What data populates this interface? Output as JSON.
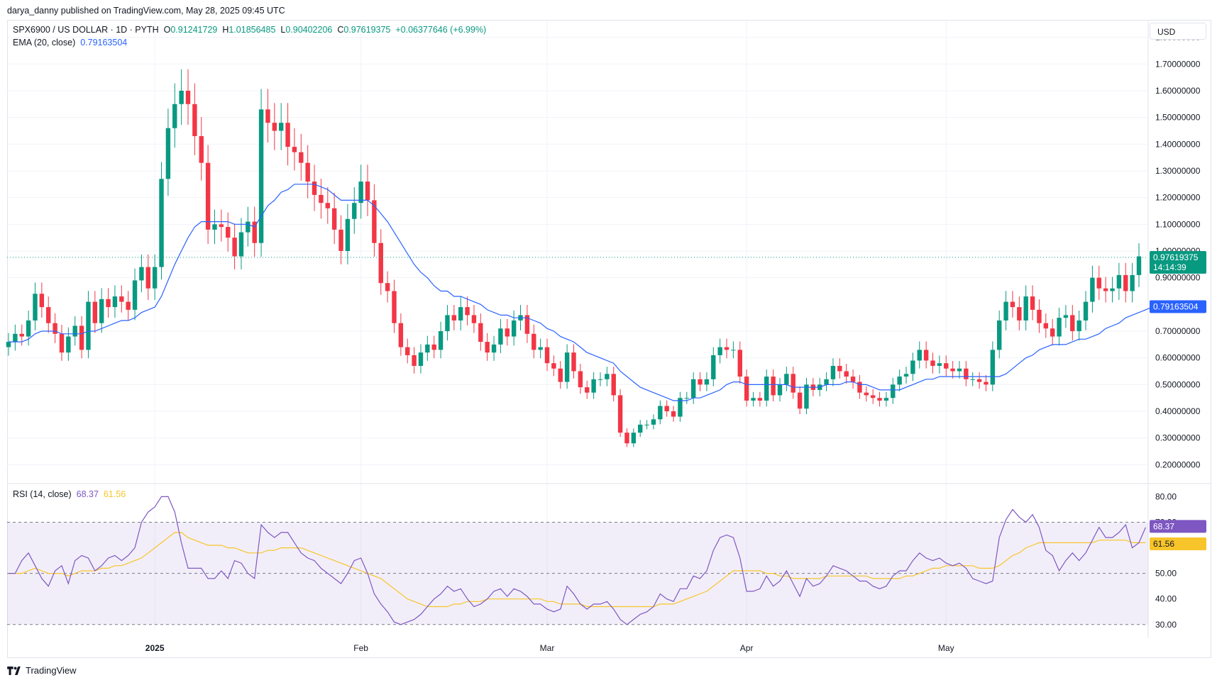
{
  "publisher_line": "darya_danny published on TradingView.com, May 28, 2025 09:45 UTC",
  "symbol": {
    "name": "SPX6900 / US DOLLAR · 1D · PYTH",
    "o_label": "O",
    "o": "0.91241729",
    "h_label": "H",
    "h": "1.01856485",
    "l_label": "L",
    "l": "0.90402206",
    "c_label": "C",
    "c": "0.97619375",
    "change": "+0.06377646 (+6.99%)"
  },
  "ema": {
    "label": "EMA (20, close)",
    "value": "0.79163504"
  },
  "rsi": {
    "label": "RSI (14, close)",
    "value": "68.37",
    "ma": "61.56"
  },
  "currency_button": "USD",
  "price_tag": {
    "value": "0.97619375",
    "countdown": "14:14:39"
  },
  "ema_tag": "0.79163504",
  "rsi_tag": "68.37",
  "rsi_ma_tag": "61.56",
  "brand": "TradingView",
  "colors": {
    "up": "#089981",
    "down": "#f23645",
    "ema": "#2962ff",
    "rsi": "#7e57c2",
    "rsi_ma": "#f7c52a"
  },
  "chart_data": [
    {
      "type": "candlestick",
      "title": "SPX6900 / US DOLLAR · 1D · PYTH",
      "x_labels": [
        "2025",
        "Feb",
        "Mar",
        "Apr",
        "May"
      ],
      "y_ticks": [
        "1.80000000",
        "1.70000000",
        "1.60000000",
        "1.50000000",
        "1.40000000",
        "1.30000000",
        "1.20000000",
        "1.10000000",
        "1.00000000",
        "0.90000000",
        "0.70000000",
        "0.60000000",
        "0.50000000",
        "0.40000000",
        "0.30000000",
        "0.20000000"
      ],
      "ylim": [
        0.14,
        1.86
      ],
      "grid": true,
      "close": [
        0.66,
        0.69,
        0.68,
        0.74,
        0.84,
        0.79,
        0.73,
        0.69,
        0.62,
        0.68,
        0.72,
        0.63,
        0.81,
        0.73,
        0.82,
        0.79,
        0.83,
        0.81,
        0.78,
        0.89,
        0.94,
        0.86,
        0.94,
        1.27,
        1.46,
        1.55,
        1.6,
        1.55,
        1.43,
        1.33,
        1.08,
        1.1,
        1.09,
        1.05,
        0.98,
        1.07,
        1.11,
        1.03,
        1.53,
        1.48,
        1.45,
        1.48,
        1.39,
        1.37,
        1.33,
        1.26,
        1.21,
        1.18,
        1.16,
        1.08,
        1.0,
        1.12,
        1.18,
        1.26,
        1.19,
        1.03,
        0.88,
        0.85,
        0.73,
        0.64,
        0.61,
        0.57,
        0.62,
        0.65,
        0.63,
        0.7,
        0.76,
        0.74,
        0.79,
        0.76,
        0.73,
        0.66,
        0.62,
        0.65,
        0.71,
        0.68,
        0.74,
        0.76,
        0.69,
        0.63,
        0.64,
        0.58,
        0.56,
        0.51,
        0.62,
        0.55,
        0.49,
        0.47,
        0.52,
        0.52,
        0.54,
        0.46,
        0.32,
        0.28,
        0.32,
        0.35,
        0.35,
        0.37,
        0.42,
        0.4,
        0.38,
        0.45,
        0.45,
        0.52,
        0.5,
        0.52,
        0.61,
        0.64,
        0.63,
        0.63,
        0.53,
        0.44,
        0.45,
        0.44,
        0.53,
        0.46,
        0.5,
        0.54,
        0.47,
        0.41,
        0.5,
        0.48,
        0.5,
        0.52,
        0.57,
        0.55,
        0.53,
        0.51,
        0.47,
        0.46,
        0.45,
        0.44,
        0.45,
        0.5,
        0.53,
        0.54,
        0.59,
        0.63,
        0.59,
        0.57,
        0.58,
        0.56,
        0.55,
        0.56,
        0.52,
        0.52,
        0.51,
        0.5,
        0.63,
        0.74,
        0.81,
        0.79,
        0.74,
        0.83,
        0.78,
        0.73,
        0.71,
        0.68,
        0.75,
        0.76,
        0.7,
        0.74,
        0.81,
        0.9,
        0.86,
        0.85,
        0.86,
        0.91,
        0.85,
        0.91,
        0.98
      ],
      "ema": {
        "name": "EMA (20, close)",
        "values": [
          0.66,
          0.66,
          0.66,
          0.67,
          0.69,
          0.7,
          0.7,
          0.7,
          0.69,
          0.69,
          0.69,
          0.69,
          0.7,
          0.7,
          0.71,
          0.72,
          0.73,
          0.74,
          0.74,
          0.75,
          0.77,
          0.78,
          0.79,
          0.83,
          0.89,
          0.95,
          1.0,
          1.05,
          1.09,
          1.11,
          1.11,
          1.11,
          1.11,
          1.11,
          1.1,
          1.1,
          1.1,
          1.09,
          1.13,
          1.17,
          1.19,
          1.22,
          1.23,
          1.25,
          1.25,
          1.25,
          1.25,
          1.24,
          1.23,
          1.21,
          1.19,
          1.19,
          1.19,
          1.19,
          1.19,
          1.17,
          1.14,
          1.11,
          1.07,
          1.03,
          0.99,
          0.95,
          0.92,
          0.9,
          0.87,
          0.85,
          0.85,
          0.83,
          0.83,
          0.82,
          0.81,
          0.8,
          0.78,
          0.77,
          0.76,
          0.76,
          0.75,
          0.75,
          0.75,
          0.74,
          0.73,
          0.71,
          0.7,
          0.68,
          0.67,
          0.66,
          0.64,
          0.62,
          0.61,
          0.6,
          0.59,
          0.58,
          0.55,
          0.53,
          0.51,
          0.49,
          0.48,
          0.47,
          0.46,
          0.45,
          0.44,
          0.44,
          0.44,
          0.45,
          0.45,
          0.46,
          0.47,
          0.48,
          0.5,
          0.51,
          0.51,
          0.5,
          0.5,
          0.5,
          0.5,
          0.5,
          0.5,
          0.5,
          0.49,
          0.49,
          0.49,
          0.49,
          0.49,
          0.5,
          0.5,
          0.5,
          0.51,
          0.51,
          0.5,
          0.5,
          0.49,
          0.48,
          0.48,
          0.48,
          0.48,
          0.49,
          0.5,
          0.51,
          0.52,
          0.52,
          0.53,
          0.53,
          0.53,
          0.53,
          0.53,
          0.53,
          0.53,
          0.53,
          0.53,
          0.53,
          0.54,
          0.56,
          0.58,
          0.6,
          0.61,
          0.63,
          0.64,
          0.65,
          0.65,
          0.65,
          0.66,
          0.67,
          0.67,
          0.68,
          0.69,
          0.71,
          0.72,
          0.73,
          0.75,
          0.76,
          0.77,
          0.78,
          0.79
        ]
      },
      "last_price": 0.97619375
    },
    {
      "type": "line",
      "title": "RSI (14, close)",
      "y_ticks": [
        "80.00",
        "70.00",
        "50.00",
        "40.00",
        "30.00"
      ],
      "ylim": [
        28,
        84
      ],
      "band": [
        30,
        70
      ],
      "series": [
        {
          "name": "RSI (14, close)",
          "values": [
            50,
            50,
            55,
            58,
            53,
            48,
            45,
            51,
            53,
            46,
            55,
            57,
            56,
            51,
            53,
            56,
            57,
            55,
            57,
            60,
            70,
            74,
            76,
            80,
            80,
            74,
            62,
            52,
            52,
            52,
            48,
            48,
            51,
            48,
            55,
            54,
            50,
            48,
            69,
            66,
            64,
            66,
            66,
            62,
            58,
            56,
            55,
            52,
            50,
            48,
            46,
            50,
            55,
            56,
            50,
            42,
            38,
            35,
            31,
            30,
            31,
            32,
            34,
            37,
            40,
            42,
            45,
            43,
            44,
            40,
            37,
            38,
            40,
            43,
            44,
            41,
            44,
            43,
            41,
            38,
            38,
            36,
            35,
            36,
            45,
            42,
            38,
            36,
            38,
            38,
            39,
            36,
            32,
            30,
            32,
            34,
            35,
            37,
            42,
            40,
            39,
            44,
            44,
            49,
            48,
            51,
            59,
            64,
            65,
            64,
            56,
            43,
            43,
            44,
            49,
            45,
            47,
            51,
            46,
            41,
            48,
            45,
            46,
            49,
            53,
            52,
            51,
            49,
            47,
            47,
            45,
            44,
            45,
            49,
            51,
            51,
            55,
            58,
            56,
            55,
            56,
            54,
            53,
            54,
            52,
            48,
            47,
            46,
            47,
            64,
            71,
            75,
            72,
            70,
            73,
            68,
            59,
            57,
            51,
            55,
            58,
            55,
            58,
            63,
            68,
            64,
            64,
            66,
            69,
            60,
            62,
            68
          ]
        },
        {
          "name": "RSI-based MA",
          "values": [
            50,
            50,
            50,
            51,
            52,
            51,
            50,
            50,
            50,
            49,
            50,
            51,
            51,
            51,
            52,
            52,
            53,
            53,
            54,
            55,
            56,
            58,
            60,
            62,
            64,
            66,
            66,
            64,
            63,
            62,
            61,
            61,
            61,
            60,
            60,
            59,
            58,
            58,
            58,
            59,
            59,
            60,
            60,
            60,
            60,
            59,
            58,
            57,
            56,
            55,
            54,
            53,
            52,
            51,
            50,
            49,
            48,
            46,
            44,
            42,
            40,
            39,
            38,
            37,
            37,
            37,
            37,
            38,
            38,
            39,
            39,
            39,
            40,
            40,
            40,
            40,
            40,
            40,
            40,
            40,
            40,
            39,
            39,
            38,
            38,
            38,
            38,
            37,
            37,
            37,
            37,
            37,
            37,
            37,
            37,
            37,
            37,
            37,
            38,
            38,
            38,
            39,
            40,
            41,
            42,
            43,
            45,
            47,
            49,
            51,
            51,
            51,
            51,
            51,
            50,
            50,
            49,
            49,
            48,
            48,
            48,
            48,
            48,
            49,
            49,
            49,
            49,
            49,
            49,
            49,
            48,
            48,
            48,
            48,
            48,
            49,
            49,
            50,
            51,
            52,
            52,
            53,
            53,
            53,
            53,
            53,
            52,
            52,
            52,
            53,
            55,
            57,
            58,
            60,
            61,
            62,
            62,
            62,
            62,
            62,
            62,
            62,
            62,
            62,
            63,
            63,
            63,
            63,
            63,
            62,
            62,
            62
          ]
        }
      ]
    }
  ]
}
